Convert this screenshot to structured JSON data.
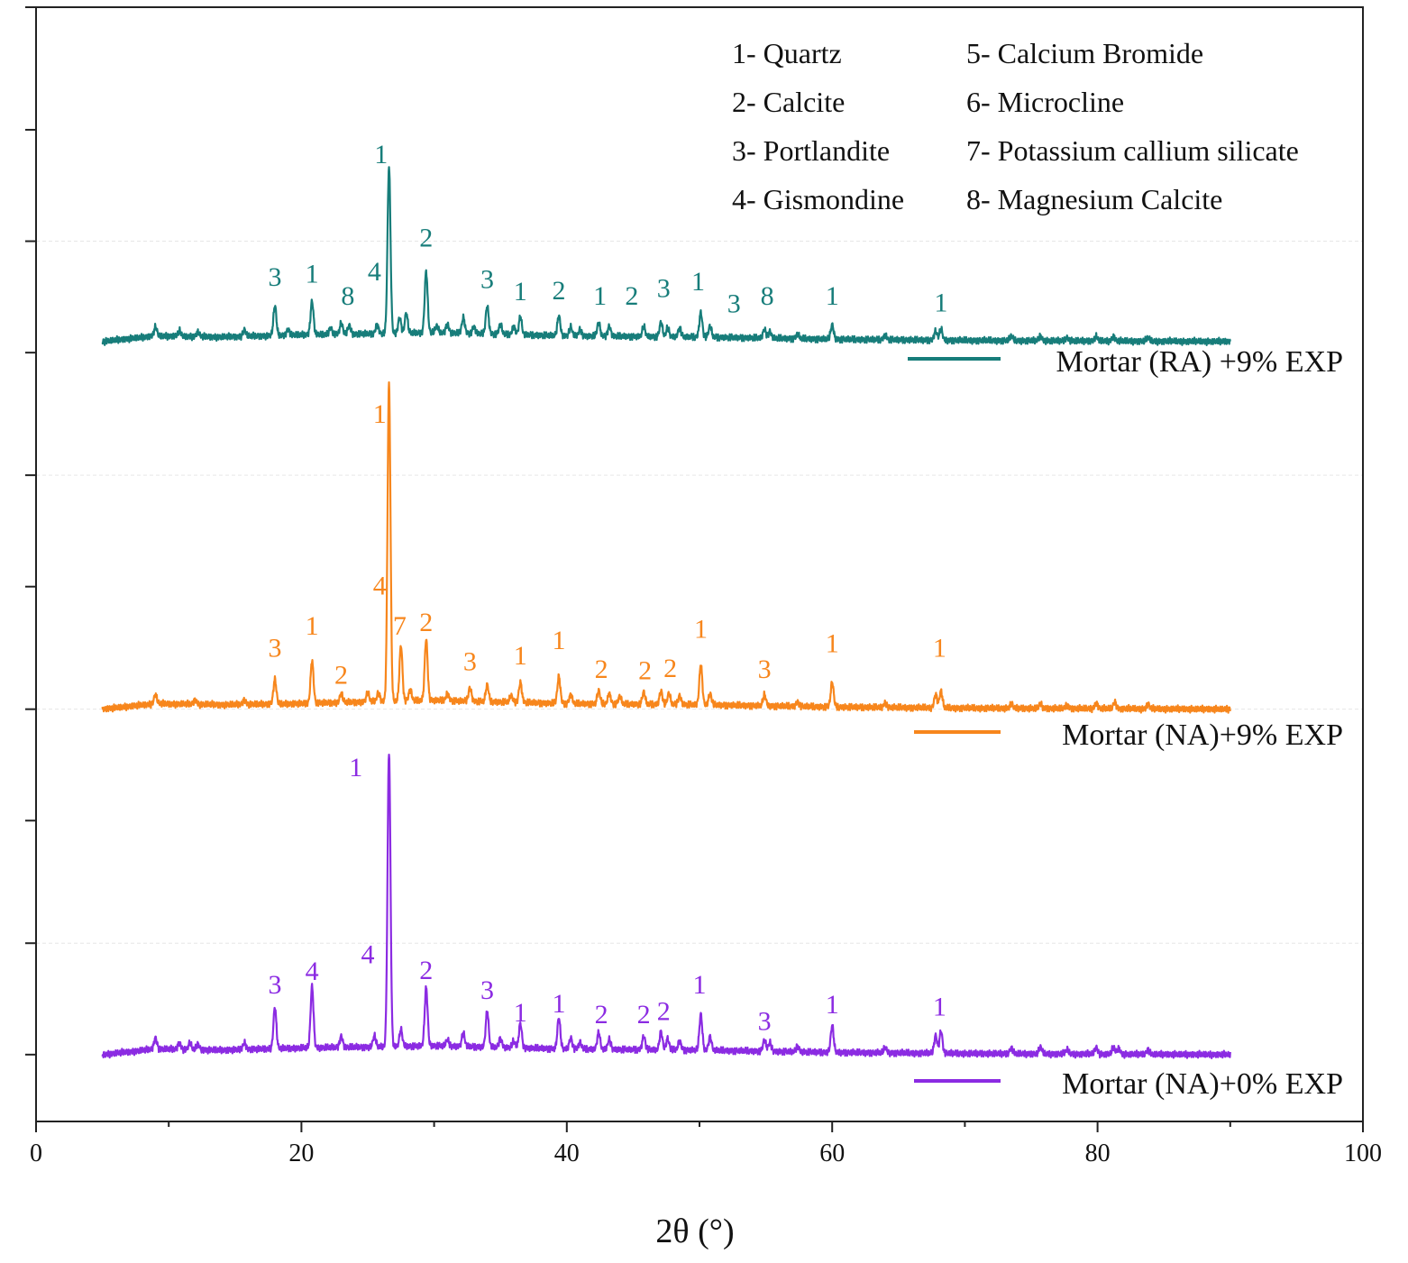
{
  "chart_data": {
    "type": "line",
    "title": "",
    "xlabel": "2θ (°)",
    "ylabel": "",
    "xlim": [
      0,
      100
    ],
    "ylim": [
      0,
      1
    ],
    "x_ticks": [
      0,
      20,
      40,
      60,
      80,
      100
    ],
    "x_tick_labels": [
      "0",
      "20",
      "40",
      "60",
      "80",
      "100"
    ],
    "y_tick_values": [
      0.06,
      0.16,
      0.27,
      0.37,
      0.48,
      0.58,
      0.69,
      0.79,
      0.89,
      1.0
    ],
    "grid": "faint horizontal dashed lines",
    "legend": [
      {
        "label": "1- Quartz"
      },
      {
        "label": "2- Calcite"
      },
      {
        "label": "3- Portlandite"
      },
      {
        "label": "4- Gismondine"
      },
      {
        "label": "5- Calcium Bromide"
      },
      {
        "label": "6- Microcline"
      },
      {
        "label": "7- Potassium callium silicate"
      },
      {
        "label": "8- Magnesium Calcite"
      }
    ],
    "series": [
      {
        "name": "Mortar (RA) +9% EXP",
        "color": "#177d7a",
        "baseline": 0.7,
        "background": [
          [
            5,
            0
          ],
          [
            9,
            0.005
          ],
          [
            14,
            0.004
          ],
          [
            20,
            0.006
          ],
          [
            26,
            0.007
          ],
          [
            30,
            0.008
          ],
          [
            40,
            0.005
          ],
          [
            50,
            0.004
          ],
          [
            60,
            0.002
          ],
          [
            70,
            0.001
          ],
          [
            90,
            0
          ]
        ],
        "peaks": [
          [
            9.0,
            0.008
          ],
          [
            10.8,
            0.005
          ],
          [
            12.2,
            0.004
          ],
          [
            15.7,
            0.006
          ],
          [
            18.0,
            0.027
          ],
          [
            19.0,
            0.005
          ],
          [
            20.8,
            0.03
          ],
          [
            22.2,
            0.006
          ],
          [
            23.0,
            0.01
          ],
          [
            23.6,
            0.008
          ],
          [
            25.7,
            0.008
          ],
          [
            26.6,
            0.15
          ],
          [
            27.4,
            0.014
          ],
          [
            27.9,
            0.018
          ],
          [
            29.4,
            0.055
          ],
          [
            30.2,
            0.006
          ],
          [
            31.0,
            0.008
          ],
          [
            32.2,
            0.014
          ],
          [
            33.0,
            0.006
          ],
          [
            34.0,
            0.025
          ],
          [
            35.0,
            0.009
          ],
          [
            36.0,
            0.007
          ],
          [
            36.5,
            0.016
          ],
          [
            39.4,
            0.018
          ],
          [
            40.3,
            0.008
          ],
          [
            41.0,
            0.006
          ],
          [
            42.4,
            0.012
          ],
          [
            43.2,
            0.009
          ],
          [
            45.8,
            0.009
          ],
          [
            47.1,
            0.013
          ],
          [
            47.6,
            0.008
          ],
          [
            48.5,
            0.008
          ],
          [
            50.1,
            0.022
          ],
          [
            50.8,
            0.01
          ],
          [
            54.9,
            0.008
          ],
          [
            55.3,
            0.006
          ],
          [
            57.4,
            0.004
          ],
          [
            60.0,
            0.013
          ],
          [
            64.0,
            0.004
          ],
          [
            67.8,
            0.008
          ],
          [
            68.2,
            0.01
          ],
          [
            73.5,
            0.004
          ],
          [
            75.7,
            0.004
          ],
          [
            77.7,
            0.003
          ],
          [
            79.9,
            0.004
          ],
          [
            81.2,
            0.004
          ],
          [
            83.8,
            0.003
          ]
        ],
        "annotations": [
          {
            "x": 26.0,
            "y": 0.86,
            "text": "1"
          },
          {
            "x": 18.0,
            "y": 0.75,
            "text": "3"
          },
          {
            "x": 20.8,
            "y": 0.753,
            "text": "1"
          },
          {
            "x": 23.5,
            "y": 0.733,
            "text": "8"
          },
          {
            "x": 25.5,
            "y": 0.755,
            "text": "4"
          },
          {
            "x": 29.4,
            "y": 0.785,
            "text": "2"
          },
          {
            "x": 34.0,
            "y": 0.748,
            "text": "3"
          },
          {
            "x": 36.5,
            "y": 0.737,
            "text": "1"
          },
          {
            "x": 39.4,
            "y": 0.738,
            "text": "2"
          },
          {
            "x": 42.5,
            "y": 0.733,
            "text": "1"
          },
          {
            "x": 44.9,
            "y": 0.733,
            "text": "2"
          },
          {
            "x": 47.3,
            "y": 0.74,
            "text": "3"
          },
          {
            "x": 49.9,
            "y": 0.746,
            "text": "1"
          },
          {
            "x": 52.6,
            "y": 0.726,
            "text": "3"
          },
          {
            "x": 55.1,
            "y": 0.733,
            "text": "8"
          },
          {
            "x": 60.0,
            "y": 0.733,
            "text": "1"
          },
          {
            "x": 68.2,
            "y": 0.727,
            "text": "1"
          }
        ]
      },
      {
        "name": "Mortar (NA)+9% EXP",
        "color": "#f7861c",
        "baseline": 0.37,
        "background": [
          [
            5,
            0
          ],
          [
            9,
            0.005
          ],
          [
            14,
            0.004
          ],
          [
            20,
            0.005
          ],
          [
            26,
            0.007
          ],
          [
            30,
            0.008
          ],
          [
            40,
            0.005
          ],
          [
            50,
            0.004
          ],
          [
            60,
            0.002
          ],
          [
            70,
            0.001
          ],
          [
            90,
            0
          ]
        ],
        "peaks": [
          [
            9.0,
            0.008
          ],
          [
            12.0,
            0.004
          ],
          [
            15.7,
            0.004
          ],
          [
            18.0,
            0.022
          ],
          [
            20.8,
            0.038
          ],
          [
            23.0,
            0.008
          ],
          [
            25.0,
            0.008
          ],
          [
            25.8,
            0.008
          ],
          [
            26.6,
            0.285
          ],
          [
            27.5,
            0.05
          ],
          [
            28.2,
            0.01
          ],
          [
            29.4,
            0.055
          ],
          [
            31.0,
            0.006
          ],
          [
            32.7,
            0.012
          ],
          [
            34.0,
            0.015
          ],
          [
            35.8,
            0.006
          ],
          [
            36.5,
            0.018
          ],
          [
            39.4,
            0.024
          ],
          [
            40.3,
            0.008
          ],
          [
            42.4,
            0.012
          ],
          [
            43.2,
            0.009
          ],
          [
            44.0,
            0.007
          ],
          [
            45.8,
            0.011
          ],
          [
            47.1,
            0.012
          ],
          [
            47.7,
            0.01
          ],
          [
            48.5,
            0.008
          ],
          [
            50.1,
            0.036
          ],
          [
            50.8,
            0.01
          ],
          [
            54.9,
            0.01
          ],
          [
            57.4,
            0.004
          ],
          [
            60.0,
            0.022
          ],
          [
            64.0,
            0.004
          ],
          [
            67.8,
            0.012
          ],
          [
            68.2,
            0.015
          ],
          [
            73.5,
            0.004
          ],
          [
            75.7,
            0.004
          ],
          [
            77.7,
            0.003
          ],
          [
            79.9,
            0.005
          ],
          [
            81.3,
            0.006
          ],
          [
            83.8,
            0.004
          ]
        ],
        "annotations": [
          {
            "x": 25.9,
            "y": 0.627,
            "text": "1"
          },
          {
            "x": 25.9,
            "y": 0.473,
            "text": "4"
          },
          {
            "x": 27.4,
            "y": 0.437,
            "text": "7"
          },
          {
            "x": 18.0,
            "y": 0.417,
            "text": "3"
          },
          {
            "x": 20.8,
            "y": 0.437,
            "text": "1"
          },
          {
            "x": 23.0,
            "y": 0.393,
            "text": "2"
          },
          {
            "x": 29.4,
            "y": 0.44,
            "text": "2"
          },
          {
            "x": 32.7,
            "y": 0.405,
            "text": "3"
          },
          {
            "x": 36.5,
            "y": 0.41,
            "text": "1"
          },
          {
            "x": 39.4,
            "y": 0.424,
            "text": "1"
          },
          {
            "x": 42.6,
            "y": 0.398,
            "text": "2"
          },
          {
            "x": 45.9,
            "y": 0.397,
            "text": "2"
          },
          {
            "x": 47.8,
            "y": 0.399,
            "text": "2"
          },
          {
            "x": 50.1,
            "y": 0.434,
            "text": "1"
          },
          {
            "x": 54.9,
            "y": 0.398,
            "text": "3"
          },
          {
            "x": 60.0,
            "y": 0.421,
            "text": "1"
          },
          {
            "x": 68.1,
            "y": 0.417,
            "text": "1"
          }
        ]
      },
      {
        "name": "Mortar (NA)+0% EXP",
        "color": "#8b2be2",
        "baseline": 0.06,
        "background": [
          [
            5,
            0
          ],
          [
            9,
            0.005
          ],
          [
            14,
            0.004
          ],
          [
            20,
            0.006
          ],
          [
            26,
            0.007
          ],
          [
            30,
            0.008
          ],
          [
            40,
            0.005
          ],
          [
            50,
            0.004
          ],
          [
            60,
            0.002
          ],
          [
            70,
            0.001
          ],
          [
            90,
            0
          ]
        ],
        "peaks": [
          [
            9.0,
            0.01
          ],
          [
            10.8,
            0.006
          ],
          [
            11.6,
            0.006
          ],
          [
            12.2,
            0.005
          ],
          [
            15.7,
            0.006
          ],
          [
            18.0,
            0.037
          ],
          [
            20.8,
            0.055
          ],
          [
            23.0,
            0.01
          ],
          [
            25.5,
            0.01
          ],
          [
            26.6,
            0.265
          ],
          [
            27.5,
            0.015
          ],
          [
            29.4,
            0.052
          ],
          [
            31.0,
            0.006
          ],
          [
            32.2,
            0.012
          ],
          [
            34.0,
            0.032
          ],
          [
            35.0,
            0.008
          ],
          [
            36.0,
            0.006
          ],
          [
            36.5,
            0.022
          ],
          [
            39.4,
            0.028
          ],
          [
            40.3,
            0.01
          ],
          [
            41.0,
            0.006
          ],
          [
            42.4,
            0.015
          ],
          [
            43.2,
            0.009
          ],
          [
            45.8,
            0.012
          ],
          [
            47.1,
            0.016
          ],
          [
            47.6,
            0.01
          ],
          [
            48.5,
            0.008
          ],
          [
            50.1,
            0.032
          ],
          [
            50.8,
            0.012
          ],
          [
            54.9,
            0.01
          ],
          [
            55.3,
            0.008
          ],
          [
            57.4,
            0.005
          ],
          [
            60.0,
            0.024
          ],
          [
            64.0,
            0.005
          ],
          [
            67.8,
            0.016
          ],
          [
            68.2,
            0.02
          ],
          [
            73.5,
            0.005
          ],
          [
            75.7,
            0.006
          ],
          [
            77.7,
            0.004
          ],
          [
            79.9,
            0.006
          ],
          [
            81.2,
            0.006
          ],
          [
            81.6,
            0.005
          ],
          [
            83.8,
            0.004
          ]
        ],
        "annotations": [
          {
            "x": 24.1,
            "y": 0.31,
            "text": "1"
          },
          {
            "x": 25.0,
            "y": 0.142,
            "text": "4"
          },
          {
            "x": 18.0,
            "y": 0.115,
            "text": "3"
          },
          {
            "x": 20.8,
            "y": 0.127,
            "text": "4"
          },
          {
            "x": 29.4,
            "y": 0.128,
            "text": "2"
          },
          {
            "x": 34.0,
            "y": 0.11,
            "text": "3"
          },
          {
            "x": 36.5,
            "y": 0.09,
            "text": "1"
          },
          {
            "x": 39.4,
            "y": 0.098,
            "text": "1"
          },
          {
            "x": 42.6,
            "y": 0.088,
            "text": "2"
          },
          {
            "x": 45.8,
            "y": 0.088,
            "text": "2"
          },
          {
            "x": 47.3,
            "y": 0.091,
            "text": "2"
          },
          {
            "x": 50.0,
            "y": 0.115,
            "text": "1"
          },
          {
            "x": 54.9,
            "y": 0.082,
            "text": "3"
          },
          {
            "x": 60.0,
            "y": 0.097,
            "text": "1"
          },
          {
            "x": 68.1,
            "y": 0.095,
            "text": "1"
          }
        ]
      }
    ]
  }
}
